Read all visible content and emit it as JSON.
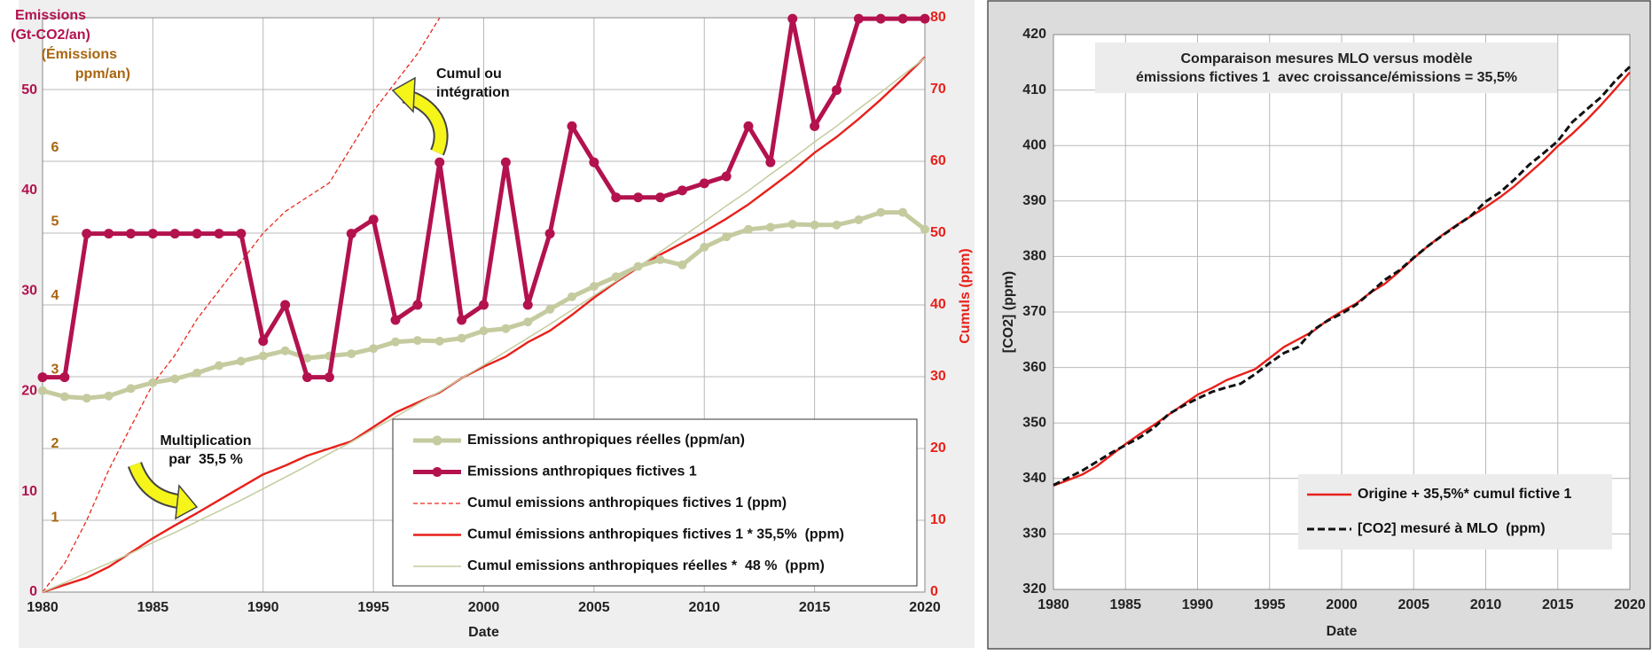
{
  "chart_data": [
    {
      "type": "line",
      "x": [
        1980,
        1981,
        1982,
        1983,
        1984,
        1985,
        1986,
        1987,
        1988,
        1989,
        1990,
        1991,
        1992,
        1993,
        1994,
        1995,
        1996,
        1997,
        1998,
        1999,
        2000,
        2001,
        2002,
        2003,
        2004,
        2005,
        2006,
        2007,
        2008,
        2009,
        2010,
        2011,
        2012,
        2013,
        2014,
        2015,
        2016,
        2017,
        2018,
        2019,
        2020
      ],
      "xlim": [
        1980,
        2020
      ],
      "xticks": [
        1980,
        1985,
        1990,
        1995,
        2000,
        2005,
        2010,
        2015,
        2020
      ],
      "xlabel": "Date",
      "ylabel": [
        "Emissions",
        "(Gt-CO2/an)"
      ],
      "ylim": [
        0,
        57.2
      ],
      "yticks": [
        0,
        10,
        20,
        30,
        40,
        50
      ],
      "ycolor": "#b3124e",
      "y3label": [
        "(Émissions",
        "ppm/an)"
      ],
      "y3lim": [
        0,
        7.76
      ],
      "y3ticks": [
        1,
        2,
        3,
        4,
        5,
        6
      ],
      "y3color": "#a8650e",
      "y2label": "Cumuls (ppm)",
      "y2lim": [
        0,
        80
      ],
      "y2ticks": [
        0,
        10,
        20,
        30,
        40,
        50,
        60,
        70,
        80
      ],
      "y2color": "#e8201a",
      "grid": true,
      "legend": "bottom right",
      "annotations": [
        {
          "text": [
            "Cumul ou",
            "intégration"
          ]
        },
        {
          "text": [
            "Multiplication",
            "par  35,5 %"
          ]
        }
      ],
      "series": [
        {
          "name": "Emissions anthropiques réelles (ppm/an)",
          "color": "#c5cb9f",
          "axis": "y3",
          "marker": true,
          "values": [
            2.72,
            2.64,
            2.62,
            2.65,
            2.75,
            2.83,
            2.88,
            2.96,
            3.06,
            3.12,
            3.19,
            3.26,
            3.16,
            3.19,
            3.22,
            3.29,
            3.38,
            3.4,
            3.39,
            3.43,
            3.53,
            3.56,
            3.65,
            3.82,
            3.99,
            4.13,
            4.26,
            4.4,
            4.49,
            4.42,
            4.66,
            4.8,
            4.9,
            4.93,
            4.97,
            4.96,
            4.96,
            5.03,
            5.13,
            5.13,
            4.9
          ]
        },
        {
          "name": "Emissions anthropiques fictives 1",
          "color": "#b3124e",
          "axis": "y",
          "marker": true,
          "values": [
            21.4,
            21.4,
            35.7,
            35.7,
            35.7,
            35.7,
            35.7,
            35.7,
            35.7,
            35.7,
            25,
            28.6,
            21.4,
            21.4,
            35.7,
            37.1,
            27.1,
            28.6,
            42.8,
            27.1,
            28.6,
            42.8,
            28.6,
            35.7,
            46.4,
            42.8,
            39.3,
            39.3,
            39.3,
            40,
            40.7,
            41.4,
            46.4,
            42.8,
            57.1,
            46.4,
            50,
            57.1,
            57.1,
            57.1,
            57.1
          ]
        },
        {
          "name": "Cumul emissions anthropiques fictives 1 (ppm)",
          "color": "#e8291c",
          "axis": "y2",
          "dash": true,
          "values": [
            0,
            4,
            10,
            17,
            23,
            29,
            33,
            38,
            42,
            46,
            50,
            53,
            55,
            57,
            62,
            67,
            71,
            75,
            80,
            null,
            null,
            null,
            null,
            null,
            null,
            null,
            null,
            null,
            null,
            null,
            null,
            null,
            null,
            null,
            null,
            null,
            null,
            null,
            null,
            null,
            null
          ]
        },
        {
          "name": "Cumul émissions anthropiques fictives 1 * 35,5%  (ppm)",
          "color": "#e8201a",
          "axis": "y2",
          "values": [
            0,
            1,
            2,
            3.5,
            5.5,
            7.5,
            9.3,
            11,
            12.8,
            14.6,
            16.4,
            17.6,
            19,
            20,
            21,
            23,
            25,
            26.4,
            27.8,
            29.8,
            31.4,
            32.8,
            34.8,
            36.4,
            38.6,
            41,
            43.2,
            45.2,
            47,
            48.6,
            50.2,
            52,
            54,
            56.3,
            58.6,
            61.2,
            63.4,
            65.9,
            68.6,
            71.5,
            74.5
          ]
        },
        {
          "name": "Cumul emissions anthropiques réelles *  48 %  (ppm)",
          "color": "#c5cb9f",
          "axis": "y2",
          "values": [
            0,
            1.3,
            2.7,
            4,
            5.4,
            6.9,
            8.3,
            9.8,
            11.3,
            12.8,
            14.4,
            16,
            17.6,
            19.3,
            20.9,
            22.7,
            24.4,
            26.2,
            27.9,
            29.8,
            31.6,
            33.5,
            35.4,
            37.3,
            39.3,
            41.3,
            43.3,
            45.3,
            47.4,
            49.5,
            51.6,
            53.8,
            55.9,
            58.2,
            60.4,
            62.7,
            64.9,
            67.3,
            69.6,
            72,
            74.4
          ]
        }
      ]
    },
    {
      "type": "line",
      "title": [
        "Comparaison mesures MLO versus modèle",
        "émissions fictives 1  avec croissance/émissions = 35,5%"
      ],
      "x": [
        1980,
        1981,
        1982,
        1983,
        1984,
        1985,
        1986,
        1987,
        1988,
        1989,
        1990,
        1991,
        1992,
        1993,
        1994,
        1995,
        1996,
        1997,
        1998,
        1999,
        2000,
        2001,
        2002,
        2003,
        2004,
        2005,
        2006,
        2007,
        2008,
        2009,
        2010,
        2011,
        2012,
        2013,
        2014,
        2015,
        2016,
        2017,
        2018,
        2019,
        2020
      ],
      "xlim": [
        1980,
        2020
      ],
      "xticks": [
        1980,
        1985,
        1990,
        1995,
        2000,
        2005,
        2010,
        2015,
        2020
      ],
      "xlabel": "Date",
      "ylabel": "[CO2] (ppm)",
      "ylim": [
        320,
        420
      ],
      "yticks": [
        320,
        330,
        340,
        350,
        360,
        370,
        380,
        390,
        400,
        410,
        420
      ],
      "grid": true,
      "legend": "bottom right",
      "series": [
        {
          "name": "Origine + 35,5%* cumul fictive 1",
          "color": "#e8201a",
          "values": [
            338.7,
            339.7,
            340.7,
            342.2,
            344.2,
            346.2,
            348,
            349.7,
            351.5,
            353.3,
            355.1,
            356.3,
            357.7,
            358.7,
            359.7,
            361.7,
            363.7,
            365.1,
            366.5,
            368.5,
            370.1,
            371.5,
            373.5,
            375.1,
            377.3,
            379.7,
            381.9,
            383.9,
            385.7,
            387.3,
            388.9,
            390.7,
            392.7,
            395,
            397.3,
            399.9,
            402.1,
            404.6,
            407.3,
            410.2,
            413.2
          ]
        },
        {
          "name": "[CO2] mesuré à MLO  (ppm)",
          "color": "#111111",
          "dash": true,
          "values": [
            338.8,
            340.1,
            341.4,
            343,
            344.6,
            346,
            347.4,
            349.2,
            351.6,
            353.1,
            354.4,
            355.6,
            356.4,
            357.1,
            358.8,
            360.8,
            362.6,
            363.7,
            366.7,
            368.4,
            369.7,
            371.3,
            373.5,
            375.8,
            377.5,
            379.8,
            381.9,
            383.8,
            385.6,
            387.4,
            389.9,
            391.6,
            393.9,
            396.5,
            398.6,
            400.8,
            404.2,
            406.5,
            408.7,
            411.7,
            414.2
          ]
        }
      ]
    }
  ]
}
